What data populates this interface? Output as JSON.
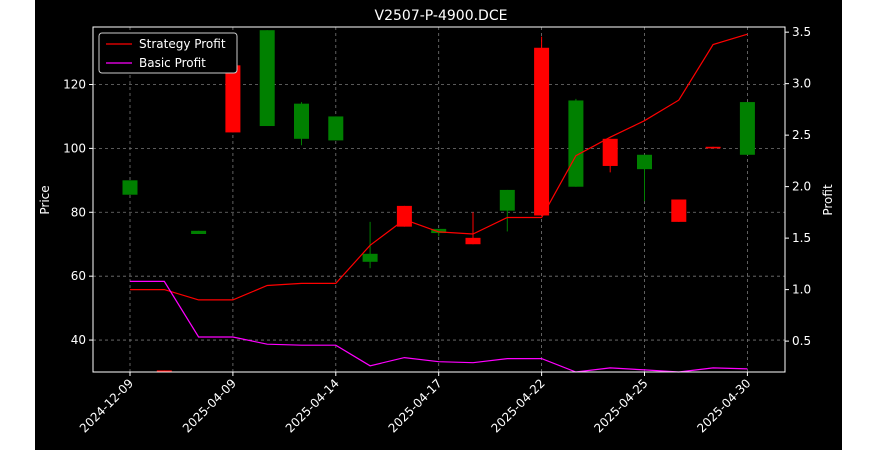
{
  "chart_data": {
    "type": "candlestick",
    "title": "V2507-P-4900.DCE",
    "xlabel": "",
    "ylabel": "Price",
    "y2label": "Profit",
    "ylim": [
      30,
      138
    ],
    "y2lim": [
      0.2,
      3.55
    ],
    "yticks": [
      40,
      60,
      80,
      100,
      120
    ],
    "y2ticks": [
      0.5,
      1.0,
      1.5,
      2.0,
      2.5,
      3.0,
      3.5
    ],
    "grid": true,
    "legend_position": "top-left",
    "x_tick_labels": [
      {
        "index": 0,
        "label": "2024-12-09"
      },
      {
        "index": 3,
        "label": "2025-04-09"
      },
      {
        "index": 6,
        "label": "2025-04-14"
      },
      {
        "index": 9,
        "label": "2025-04-17"
      },
      {
        "index": 12,
        "label": "2025-04-22"
      },
      {
        "index": 15,
        "label": "2025-04-25"
      },
      {
        "index": 18,
        "label": "2025-04-30"
      }
    ],
    "colors": {
      "up": "#008000",
      "down": "#ff0000",
      "strategy": "#ff0000",
      "basic": "#ff00ff"
    },
    "candles": [
      {
        "i": 0,
        "open": 85.5,
        "close": 90.0,
        "high": 90.0,
        "low": 85.5
      },
      {
        "i": 1,
        "open": 30.5,
        "close": 30.2,
        "high": 30.5,
        "low": 30.2
      },
      {
        "i": 2,
        "open": 73.2,
        "close": 74.2,
        "high": 74.2,
        "low": 73.2
      },
      {
        "i": 3,
        "open": 126.0,
        "close": 105.0,
        "high": 126.0,
        "low": 105.0
      },
      {
        "i": 4,
        "open": 107.0,
        "close": 137.0,
        "high": 137.0,
        "low": 107.0
      },
      {
        "i": 5,
        "open": 103.0,
        "close": 114.0,
        "high": 114.5,
        "low": 101.0
      },
      {
        "i": 6,
        "open": 102.5,
        "close": 110.0,
        "high": 110.0,
        "low": 102.5
      },
      {
        "i": 7,
        "open": 64.5,
        "close": 67.0,
        "high": 77.0,
        "low": 62.5
      },
      {
        "i": 8,
        "open": 82.0,
        "close": 75.5,
        "high": 82.0,
        "low": 75.5
      },
      {
        "i": 9,
        "open": 73.5,
        "close": 74.8,
        "high": 74.8,
        "low": 72.5
      },
      {
        "i": 10,
        "open": 72.0,
        "close": 70.0,
        "high": 80.0,
        "low": 70.0
      },
      {
        "i": 11,
        "open": 80.5,
        "close": 87.0,
        "high": 87.0,
        "low": 74.0
      },
      {
        "i": 12,
        "open": 131.5,
        "close": 79.0,
        "high": 135.0,
        "low": 79.0
      },
      {
        "i": 13,
        "open": 88.0,
        "close": 115.0,
        "high": 115.5,
        "low": 88.0
      },
      {
        "i": 14,
        "open": 103.0,
        "close": 94.5,
        "high": 103.0,
        "low": 92.5
      },
      {
        "i": 15,
        "open": 93.5,
        "close": 98.0,
        "high": 98.0,
        "low": 83.5
      },
      {
        "i": 16,
        "open": 84.0,
        "close": 77.0,
        "high": 84.0,
        "low": 77.0
      },
      {
        "i": 17,
        "open": 100.5,
        "close": 100.0,
        "high": 100.5,
        "low": 100.0
      },
      {
        "i": 18,
        "open": 98.0,
        "close": 114.5,
        "high": 114.5,
        "low": 98.0
      }
    ],
    "series": [
      {
        "name": "Strategy Profit",
        "axis": "right",
        "values": [
          1.0,
          1.0,
          0.9,
          0.9,
          1.04,
          1.06,
          1.06,
          1.43,
          1.68,
          1.56,
          1.54,
          1.7,
          1.7,
          2.3,
          2.48,
          2.64,
          2.84,
          3.38,
          3.48
        ]
      },
      {
        "name": "Basic Profit",
        "axis": "right",
        "values": [
          1.08,
          1.08,
          0.54,
          0.54,
          0.47,
          0.46,
          0.46,
          0.26,
          0.34,
          0.3,
          0.29,
          0.33,
          0.33,
          0.2,
          0.24,
          0.22,
          0.2,
          0.24,
          0.23
        ]
      }
    ]
  }
}
